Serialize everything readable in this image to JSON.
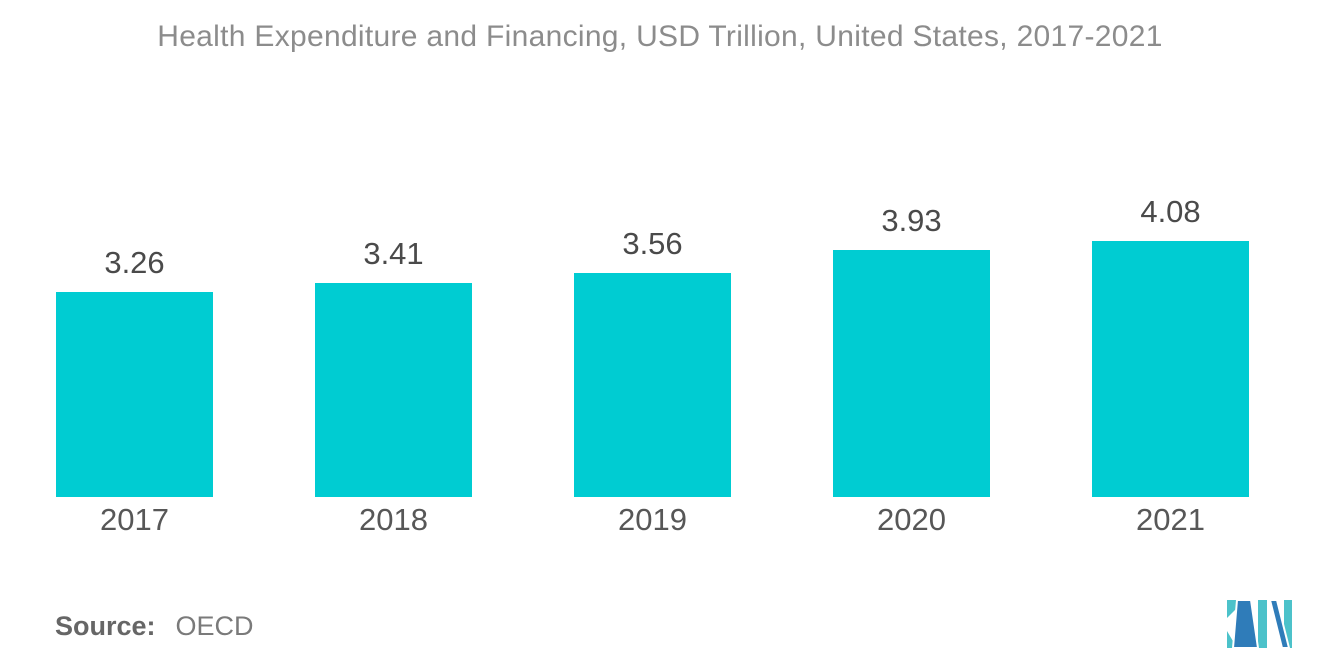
{
  "title": "Health Expenditure and Financing, USD Trillion, United States, 2017-2021",
  "source": {
    "label": "Source:",
    "value": "OECD"
  },
  "logo": {
    "name": "mordor-intelligence-logo",
    "teal": "#4CC2CA",
    "blue": "#2F7CB9"
  },
  "colors": {
    "bar": "#00CCD2",
    "title": "#8C8C8C",
    "value_label": "#4A4A4A",
    "year_label": "#575757",
    "source_label": "#666666",
    "source_value": "#7A7A7A"
  },
  "chart_data": {
    "type": "bar",
    "title": "Health Expenditure and Financing, USD Trillion, United States, 2017-2021",
    "categories": [
      "2017",
      "2018",
      "2019",
      "2020",
      "2021"
    ],
    "values": [
      3.26,
      3.41,
      3.56,
      3.93,
      4.08
    ],
    "value_labels": [
      "3.26",
      "3.41",
      "3.56",
      "3.93",
      "4.08"
    ],
    "xlabel": "",
    "ylabel": "",
    "ylim": [
      0,
      4.35
    ],
    "grid": false,
    "legend": false,
    "axis_lines": false,
    "bar_color": "#00CCD2",
    "data_label_position": "above-bar",
    "source_text": "Source: OECD"
  }
}
